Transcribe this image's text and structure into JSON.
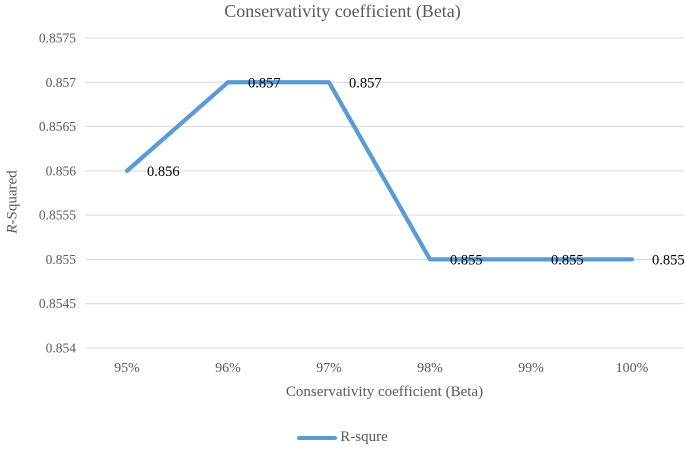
{
  "chart_data": {
    "type": "line",
    "title": "Conservativity coefficient (Beta)",
    "xlabel": "Conservativity coefficient (Beta)",
    "ylabel": {
      "italic_part": "R",
      "rest": "-Squared"
    },
    "categories": [
      "95%",
      "96%",
      "97%",
      "98%",
      "99%",
      "100%"
    ],
    "series": [
      {
        "name": "R-squre",
        "values": [
          0.856,
          0.857,
          0.857,
          0.855,
          0.855,
          0.855
        ],
        "color": "#5B9BD5"
      }
    ],
    "point_labels": [
      "0.856",
      "0.857",
      "0.857",
      "0.855",
      "0.855",
      "0.855"
    ],
    "ylim": [
      0.854,
      0.8575
    ],
    "yticks": [
      {
        "value": 0.854,
        "label": "0.854"
      },
      {
        "value": 0.8545,
        "label": "0.8545"
      },
      {
        "value": 0.855,
        "label": "0.855"
      },
      {
        "value": 0.8555,
        "label": "0.8555"
      },
      {
        "value": 0.856,
        "label": "0.856"
      },
      {
        "value": 0.8565,
        "label": "0.8565"
      },
      {
        "value": 0.857,
        "label": "0.857"
      },
      {
        "value": 0.8575,
        "label": "0.8575"
      }
    ],
    "grid": "horizontal",
    "legend_position": "bottom",
    "colors": {
      "gridline": "#D9D9D9",
      "axis_text": "#595959",
      "title_text": "#595959",
      "data_label": "#000000",
      "background": "#ffffff"
    },
    "legend": [
      {
        "label": "R-squre",
        "color": "#5B9BD5"
      }
    ]
  }
}
